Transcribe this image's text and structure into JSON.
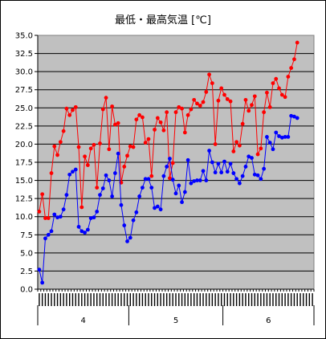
{
  "chart_data": {
    "type": "line",
    "title": "最低・最高気温 [℃]",
    "ylim": [
      0,
      35
    ],
    "yticks": [
      "0.0",
      "2.5",
      "5.0",
      "7.5",
      "10.0",
      "12.5",
      "15.0",
      "17.5",
      "20.0",
      "22.5",
      "25.0",
      "27.5",
      "30.0",
      "32.5",
      "35.0"
    ],
    "grid": true,
    "month_groups": [
      {
        "label": "4",
        "count": 30
      },
      {
        "label": "5",
        "count": 31
      },
      {
        "label": "6",
        "count": 30
      }
    ],
    "colors": {
      "max": "#ff0000",
      "min": "#0000ff",
      "plot_bg": "#c0c0c0"
    },
    "series": [
      {
        "key": "max",
        "values": [
          10.7,
          13.1,
          9.8,
          9.8,
          16.0,
          19.7,
          18.5,
          20.3,
          21.8,
          24.9,
          24.0,
          24.7,
          25.1,
          19.6,
          11.3,
          18.3,
          17.1,
          19.4,
          19.9,
          14.0,
          20.1,
          24.8,
          26.4,
          19.3,
          25.2,
          22.7,
          22.9,
          14.7,
          16.9,
          18.4,
          19.7,
          19.6,
          23.4,
          24.0,
          23.7,
          20.2,
          20.7,
          15.6,
          22.0,
          23.6,
          23.0,
          21.9,
          24.4,
          15.3,
          17.4,
          24.4,
          25.1,
          24.9,
          21.6,
          24.0,
          24.8,
          26.1,
          25.6,
          25.3,
          25.8,
          27.2,
          29.6,
          28.4,
          20.0,
          26.0,
          27.7,
          26.8,
          26.2,
          25.9,
          19.0,
          20.3,
          19.8,
          22.8,
          26.1,
          24.6,
          25.4,
          26.6,
          18.6,
          19.4,
          24.4,
          27.1,
          25.1,
          28.4,
          29.0,
          27.7,
          26.8,
          26.5,
          29.3,
          30.5,
          31.7,
          34.0
        ]
      },
      {
        "key": "min",
        "values": [
          2.7,
          0.9,
          7.0,
          7.5,
          8.0,
          10.3,
          9.9,
          10.0,
          11.0,
          13.0,
          15.8,
          16.2,
          16.5,
          8.6,
          8.0,
          7.8,
          8.2,
          9.8,
          9.9,
          10.7,
          13.0,
          13.9,
          15.7,
          15.0,
          12.8,
          16.0,
          18.7,
          11.6,
          8.8,
          6.6,
          7.1,
          9.5,
          10.6,
          12.8,
          14.0,
          15.2,
          15.2,
          14.0,
          11.2,
          11.4,
          11.0,
          15.6,
          16.9,
          18.0,
          15.1,
          13.2,
          14.3,
          12.0,
          13.4,
          17.8,
          14.6,
          14.9,
          15.0,
          15.0,
          16.3,
          15.0,
          19.1,
          17.5,
          16.1,
          17.3,
          16.1,
          17.6,
          16.2,
          17.3,
          16.0,
          15.2,
          14.6,
          15.6,
          16.9,
          18.3,
          18.1,
          15.8,
          15.7,
          15.2,
          16.6,
          21.0,
          20.2,
          19.3,
          21.6,
          21.1,
          20.9,
          21.0,
          21.0,
          23.9,
          23.8,
          23.6
        ]
      }
    ]
  }
}
